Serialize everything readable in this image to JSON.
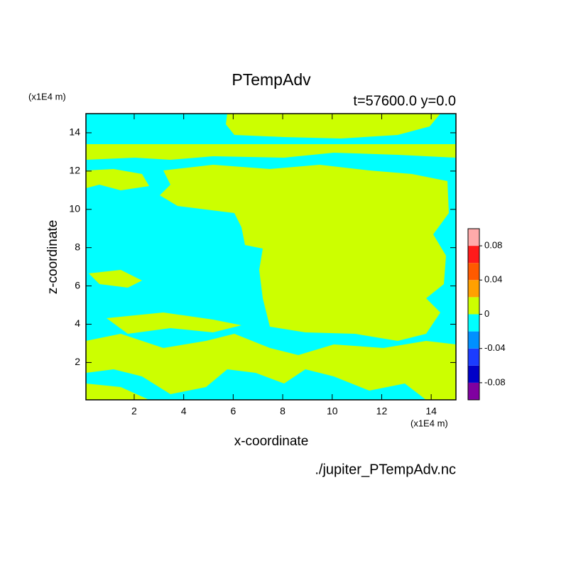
{
  "chart_data": {
    "type": "contour",
    "title": "PTempAdv",
    "subtitle": "t=57600.0 y=0.0",
    "x_label": "x-coordinate",
    "y_label": "z-coordinate",
    "x_unit": "(x1E4 m)",
    "y_unit": "(x1E4 m)",
    "source": "./jupiter_PTempAdv.nc",
    "xlim": [
      0.05,
      15
    ],
    "ylim": [
      0.05,
      15
    ],
    "xticks": [
      2,
      4,
      6,
      8,
      10,
      12,
      14
    ],
    "yticks": [
      2,
      4,
      6,
      8,
      10,
      12,
      14
    ],
    "colorbar": {
      "lim": [
        -0.1,
        0.1
      ],
      "colors": [
        "#8000a0",
        "#0000c8",
        "#1b3cff",
        "#0090ff",
        "#00ffff",
        "#ccff00",
        "#ffa000",
        "#ff5a00",
        "#ff1a1a",
        "#ffaaaa"
      ],
      "ticks": [
        -0.08,
        -0.04,
        0,
        0.04,
        0.08
      ]
    }
  }
}
